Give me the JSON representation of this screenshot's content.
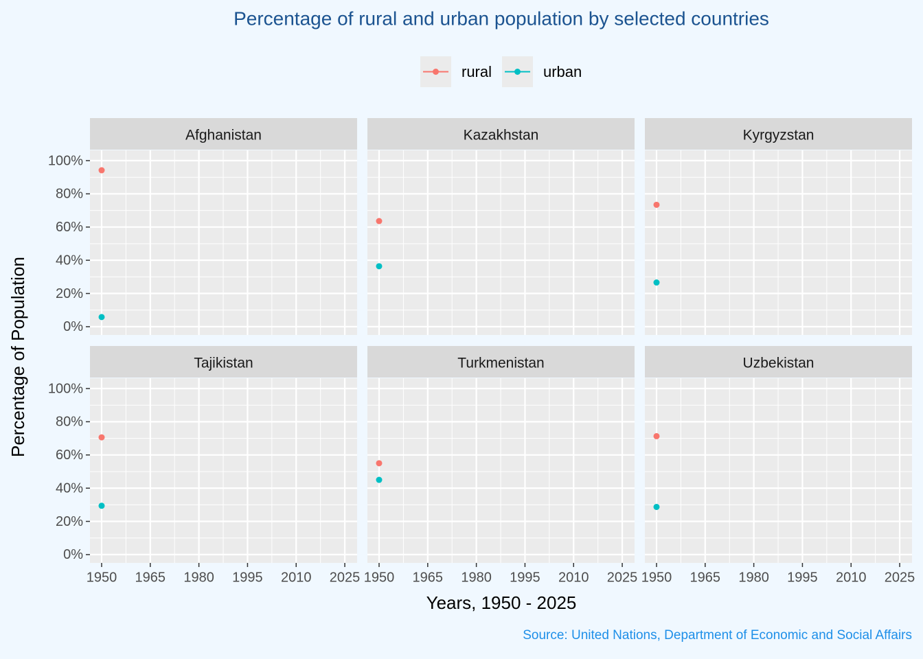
{
  "chart_data": {
    "type": "scatter",
    "title": "Percentage of rural and urban population by selected countries",
    "xlabel": "Years, 1950 - 2025",
    "ylabel": "Percentage of Population",
    "caption": "Source: United Nations, Department of Economic and Social Affairs",
    "series": [
      {
        "name": "rural",
        "color": "#F8766D"
      },
      {
        "name": "urban",
        "color": "#00BFC4"
      }
    ],
    "xlim": [
      1946.4,
      2028.8
    ],
    "xticks": [
      1950,
      1965,
      1980,
      1995,
      2010,
      2025
    ],
    "ylim": [
      -5,
      106.2
    ],
    "yticks": [
      {
        "value": 0,
        "label": "0%"
      },
      {
        "value": 20,
        "label": "20%"
      },
      {
        "value": 40,
        "label": "40%"
      },
      {
        "value": 60,
        "label": "60%"
      },
      {
        "value": 80,
        "label": "80%"
      },
      {
        "value": 100,
        "label": "100%"
      }
    ],
    "grid": true,
    "legend": "top",
    "facets": [
      {
        "title": "Afghanistan",
        "x": [
          1950
        ],
        "series": [
          {
            "values": [
              94.2
            ]
          },
          {
            "values": [
              5.8
            ]
          }
        ]
      },
      {
        "title": "Kazakhstan",
        "x": [
          1950
        ],
        "series": [
          {
            "values": [
              63.6
            ]
          },
          {
            "values": [
              36.4
            ]
          }
        ]
      },
      {
        "title": "Kyrgyzstan",
        "x": [
          1950
        ],
        "series": [
          {
            "values": [
              73.4
            ]
          },
          {
            "values": [
              26.6
            ]
          }
        ]
      },
      {
        "title": "Tajikistan",
        "x": [
          1950
        ],
        "series": [
          {
            "values": [
              70.6
            ]
          },
          {
            "values": [
              29.4
            ]
          }
        ]
      },
      {
        "title": "Turkmenistan",
        "x": [
          1950
        ],
        "series": [
          {
            "values": [
              55
            ]
          },
          {
            "values": [
              45
            ]
          }
        ]
      },
      {
        "title": "Uzbekistan",
        "x": [
          1950
        ],
        "series": [
          {
            "values": [
              71.3
            ]
          },
          {
            "values": [
              28.7
            ]
          }
        ]
      }
    ]
  }
}
